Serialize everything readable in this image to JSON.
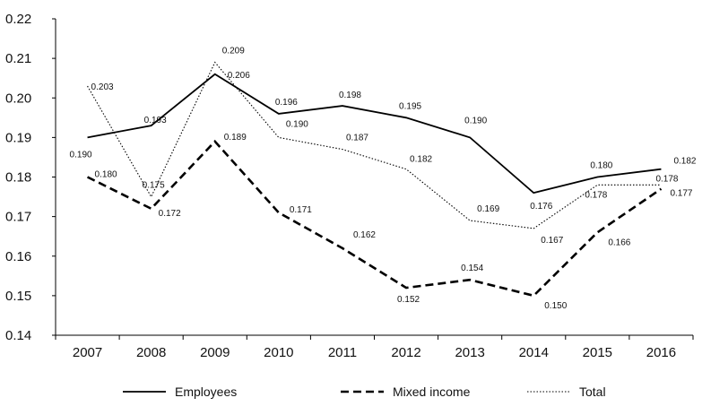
{
  "chart_data": {
    "type": "line",
    "title": "",
    "xlabel": "",
    "ylabel": "",
    "categories": [
      "2007",
      "2008",
      "2009",
      "2010",
      "2011",
      "2012",
      "2013",
      "2014",
      "2015",
      "2016"
    ],
    "ylim": [
      0.14,
      0.22
    ],
    "yticks": [
      "0.14",
      "0.15",
      "0.16",
      "0.17",
      "0.18",
      "0.19",
      "0.20",
      "0.21",
      "0.22"
    ],
    "grid": false,
    "legend_position": "bottom",
    "series": [
      {
        "name": "Employees",
        "style": "solid",
        "values": [
          0.19,
          0.193,
          0.206,
          0.196,
          0.198,
          0.195,
          0.19,
          0.176,
          0.18,
          0.182
        ],
        "labels": [
          "0.190",
          "0.193",
          "0.206",
          "0.196",
          "0.198",
          "0.195",
          "0.190",
          "0.176",
          "0.180",
          "0.182"
        ]
      },
      {
        "name": "Mixed income",
        "style": "dashed",
        "values": [
          0.18,
          0.172,
          0.189,
          0.171,
          0.162,
          0.152,
          0.154,
          0.15,
          0.166,
          0.177
        ],
        "labels": [
          "0.180",
          "0.172",
          "0.189",
          "0.171",
          "0.162",
          "0.152",
          "0.154",
          "0.150",
          "0.166",
          "0.177"
        ]
      },
      {
        "name": "Total",
        "style": "dotted",
        "values": [
          0.203,
          0.175,
          0.209,
          0.19,
          0.187,
          0.182,
          0.169,
          0.167,
          0.178,
          0.178
        ],
        "labels": [
          "0.203",
          "0.175",
          "0.209",
          "0.190",
          "0.187",
          "0.182",
          "0.169",
          "0.167",
          "0.178",
          "0.178"
        ]
      }
    ],
    "colors": {
      "line": "#000000",
      "axis": "#000000",
      "text": "#111111"
    }
  }
}
